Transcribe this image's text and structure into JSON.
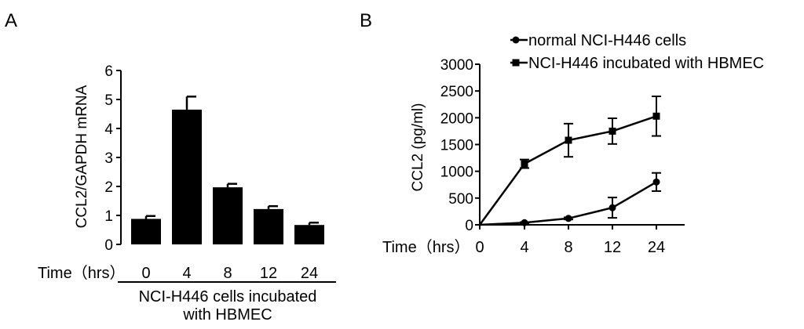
{
  "chart_data": [
    {
      "panel_label": "A",
      "type": "bar",
      "ylabel": "CCL2/GAPDH mRNA",
      "ylim": [
        0,
        6
      ],
      "yticks": [
        "0",
        "1",
        "2",
        "3",
        "4",
        "5",
        "6"
      ],
      "xlabel_prefix": "Time（hrs）",
      "categories": [
        "0",
        "4",
        "8",
        "12",
        "24"
      ],
      "values": [
        0.88,
        4.65,
        1.97,
        1.22,
        0.67
      ],
      "errors": [
        0.1,
        0.45,
        0.12,
        0.1,
        0.08
      ],
      "group_label_line1": "NCI-H446 cells incubated",
      "group_label_line2": "with HBMEC"
    },
    {
      "panel_label": "B",
      "type": "line",
      "ylabel": "CCL2 (pg/ml)",
      "ylim": [
        0,
        3000
      ],
      "yticks": [
        "0",
        "500",
        "1000",
        "1500",
        "2000",
        "2500",
        "3000"
      ],
      "xlabel_prefix": "Time（hrs）",
      "x": [
        0,
        4,
        8,
        12,
        24
      ],
      "x_tick_labels": [
        "0",
        "4",
        "8",
        "12",
        "24"
      ],
      "series": [
        {
          "name": "normal NCI-H446 cells",
          "marker": "circle",
          "values": [
            0,
            40,
            120,
            320,
            800
          ],
          "errors": [
            0,
            10,
            20,
            190,
            170
          ]
        },
        {
          "name": "NCI-H446 incubated with HBMEC",
          "marker": "square",
          "values": [
            0,
            1140,
            1580,
            1750,
            2030
          ],
          "errors": [
            0,
            80,
            310,
            240,
            370
          ]
        }
      ],
      "legend_position": "top"
    }
  ]
}
